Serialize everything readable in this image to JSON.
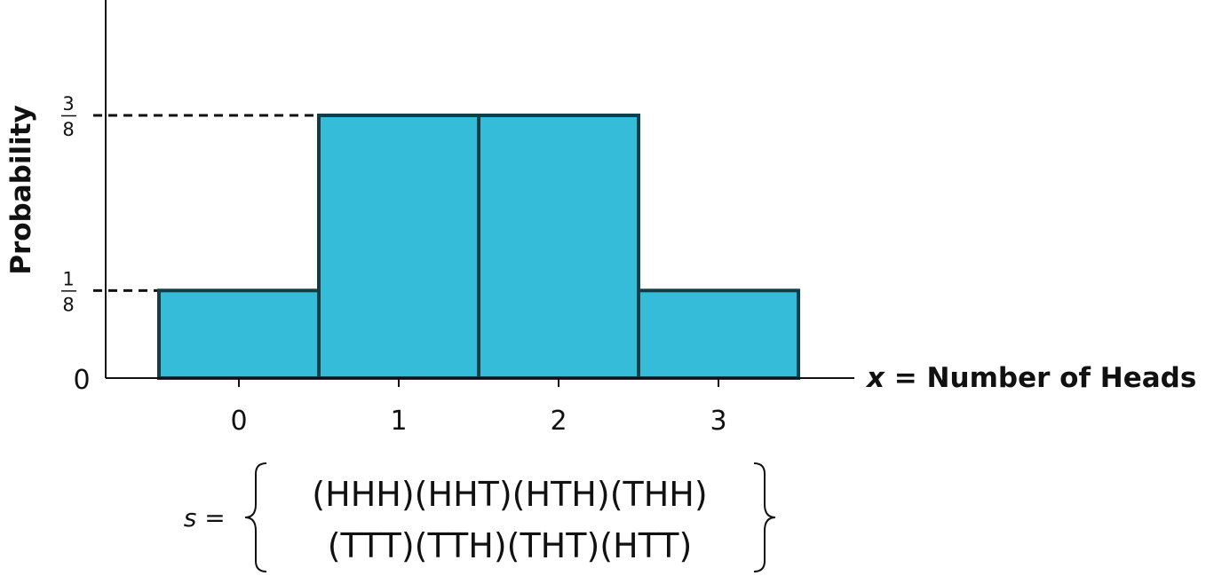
{
  "chart_data": {
    "type": "bar",
    "categories": [
      "0",
      "1",
      "2",
      "3"
    ],
    "values": [
      0.125,
      0.375,
      0.375,
      0.125
    ],
    "xlabel_var": "x",
    "xlabel_rest": " = Number of Heads",
    "ylabel": "Probability",
    "ylim": [
      0,
      0.5
    ],
    "y_tick_zero": "0",
    "y_fraction_ticks": [
      {
        "value": 0.125,
        "num": "1",
        "den": "8"
      },
      {
        "value": 0.375,
        "num": "3",
        "den": "8"
      }
    ],
    "grid": false,
    "bar_fill": "#35bcd9",
    "bar_stroke": "#0f3d48"
  },
  "sample_space": {
    "var": "s",
    "equals": "=",
    "row1": "(HHH)(HHT)(HTH)(THH)",
    "row2": "(TTT)(TTH)(THT)(HTT)"
  }
}
